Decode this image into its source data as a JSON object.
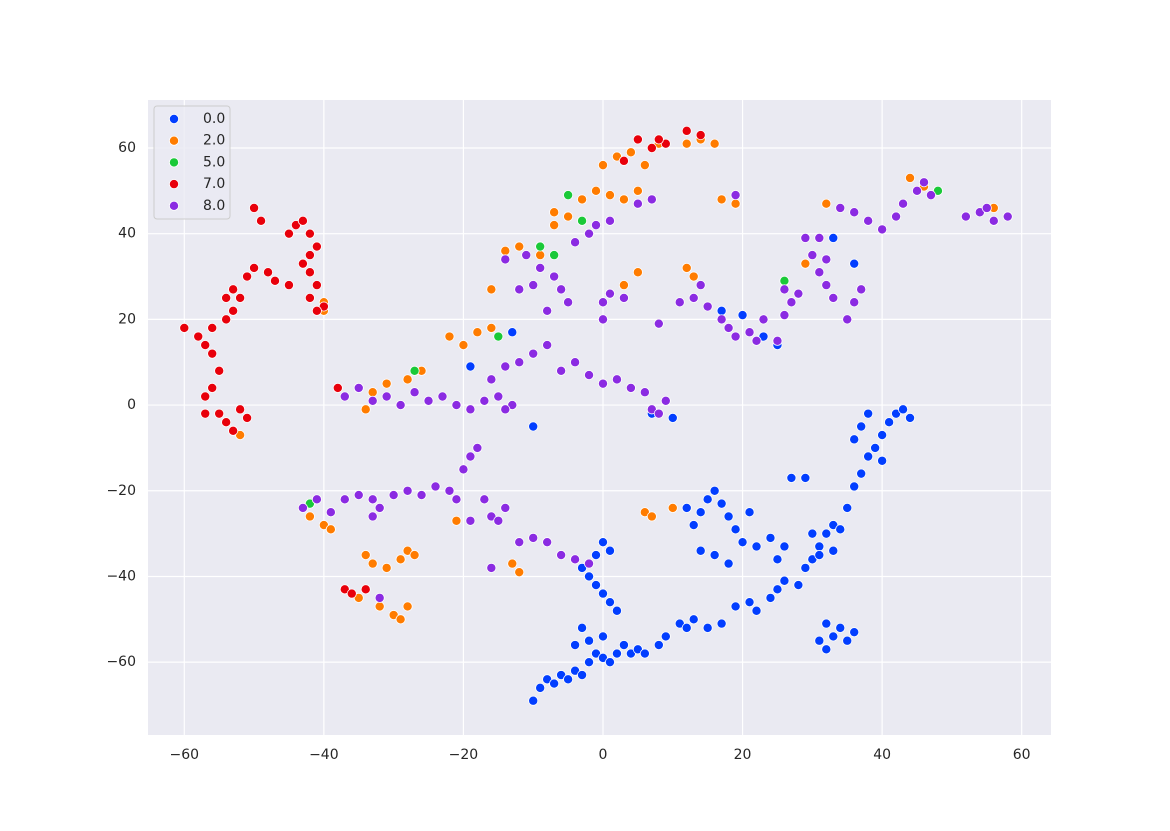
{
  "chart_data": {
    "type": "scatter",
    "legend": "upper left",
    "grid": true,
    "xlim": [
      -65.2,
      64.2
    ],
    "ylim": [
      -77.0,
      71.2
    ],
    "xticks": [
      {
        "value": -60,
        "label": "−60"
      },
      {
        "value": -40,
        "label": "−40"
      },
      {
        "value": -20,
        "label": "−20"
      },
      0,
      20,
      40,
      60
    ],
    "yticks": [
      {
        "value": -60,
        "label": "−60"
      },
      {
        "value": -40,
        "label": "−40"
      },
      {
        "value": -20,
        "label": "−20"
      },
      0,
      20,
      40,
      60
    ],
    "series": [
      {
        "name": "0.0",
        "color": "#023eff",
        "x": [
          -10,
          -9,
          -8,
          -7,
          -6,
          -5,
          -4,
          -3,
          -2,
          -1,
          0,
          1,
          2,
          3,
          4,
          5,
          6,
          8,
          9,
          11,
          12,
          13,
          15,
          17,
          19,
          21,
          22,
          24,
          25,
          26,
          28,
          29,
          30,
          31,
          32,
          33,
          34,
          35,
          36,
          37,
          38,
          39,
          40,
          40,
          41,
          42,
          43,
          44,
          36,
          37,
          38,
          -3,
          -2,
          -4,
          0,
          -3,
          -2,
          -1,
          0,
          1,
          2,
          -1,
          0,
          1,
          12,
          13,
          14,
          15,
          16,
          17,
          18,
          19,
          20,
          21,
          14,
          16,
          18,
          22,
          24,
          26,
          25,
          27,
          29,
          30,
          31,
          33,
          31,
          32,
          33,
          34,
          35,
          36,
          32,
          -10,
          -19,
          -13,
          7,
          10,
          17,
          20,
          23,
          25,
          33,
          36
        ],
        "values": [
          -69,
          -66,
          -64,
          -65,
          -63,
          -64,
          -62,
          -63,
          -60,
          -58,
          -59,
          -60,
          -58,
          -56,
          -58,
          -57,
          -58,
          -56,
          -54,
          -51,
          -52,
          -50,
          -52,
          -51,
          -47,
          -46,
          -48,
          -45,
          -43,
          -41,
          -42,
          -38,
          -36,
          -33,
          -30,
          -28,
          -29,
          -24,
          -19,
          -16,
          -12,
          -10,
          -13,
          -7,
          -4,
          -2,
          -1,
          -3,
          -8,
          -5,
          -2,
          -52,
          -55,
          -56,
          -54,
          -38,
          -40,
          -42,
          -44,
          -46,
          -48,
          -35,
          -32,
          -34,
          -24,
          -28,
          -25,
          -22,
          -20,
          -23,
          -26,
          -29,
          -32,
          -25,
          -34,
          -35,
          -37,
          -33,
          -31,
          -33,
          -36,
          -17,
          -17,
          -30,
          -35,
          -34,
          -55,
          -57,
          -54,
          -52,
          -55,
          -53,
          -51,
          -5,
          9,
          17,
          -2,
          -3,
          22,
          21,
          16,
          14,
          39,
          33
        ]
      },
      {
        "name": "2.0",
        "color": "#ff7c00",
        "x": [
          -42,
          -40,
          -39,
          -34,
          -33,
          -31,
          -29,
          -28,
          -27,
          -35,
          -32,
          -30,
          -29,
          -28,
          -35,
          -33,
          -31,
          -28,
          -26,
          -34,
          -21,
          -13,
          -12,
          -22,
          -20,
          -18,
          -16,
          -16,
          -14,
          -12,
          -9,
          -7,
          -5,
          -3,
          -1,
          1,
          3,
          5,
          0,
          2,
          4,
          6,
          12,
          14,
          16,
          3,
          5,
          13,
          12,
          17,
          19,
          29,
          32,
          44,
          46,
          56,
          6,
          7,
          10,
          -53,
          -52,
          -40,
          -40,
          -7,
          8
        ],
        "values": [
          -26,
          -28,
          -29,
          -35,
          -37,
          -38,
          -36,
          -34,
          -35,
          -45,
          -47,
          -49,
          -50,
          -47,
          4,
          3,
          5,
          6,
          8,
          -1,
          -27,
          -37,
          -39,
          16,
          14,
          17,
          18,
          27,
          36,
          37,
          35,
          42,
          44,
          48,
          50,
          49,
          48,
          50,
          56,
          58,
          59,
          56,
          61,
          62,
          61,
          28,
          31,
          30,
          32,
          48,
          47,
          33,
          47,
          53,
          51,
          46,
          -25,
          -26,
          -24,
          -6,
          -7,
          22,
          24,
          45,
          61
        ]
      },
      {
        "name": "5.0",
        "color": "#1ac938",
        "x": [
          -27,
          -12,
          -7,
          -9,
          -5,
          -3,
          -15,
          26,
          48,
          -42
        ],
        "values": [
          8,
          27,
          35,
          37,
          49,
          43,
          16,
          29,
          50,
          -23
        ]
      },
      {
        "name": "7.0",
        "color": "#e8000b",
        "x": [
          -60,
          -58,
          -57,
          -56,
          -55,
          -56,
          -57,
          -55,
          -54,
          -53,
          -52,
          -51,
          -57,
          -54,
          -53,
          -52,
          -53,
          -51,
          -50,
          -48,
          -47,
          -45,
          -49,
          -50,
          -45,
          -44,
          -43,
          -42,
          -41,
          -42,
          -43,
          -42,
          -41,
          -42,
          -40,
          -41,
          -37,
          -36,
          -34,
          -38,
          5,
          7,
          9,
          3,
          12,
          14,
          8,
          -54,
          -56
        ],
        "values": [
          18,
          16,
          14,
          12,
          8,
          4,
          2,
          -2,
          -4,
          -6,
          -1,
          -3,
          -2,
          20,
          22,
          25,
          27,
          30,
          32,
          31,
          29,
          28,
          43,
          46,
          40,
          42,
          43,
          40,
          37,
          35,
          33,
          31,
          28,
          25,
          23,
          22,
          -43,
          -44,
          -43,
          4,
          62,
          60,
          61,
          57,
          64,
          63,
          62,
          25,
          18
        ]
      },
      {
        "name": "8.0",
        "color": "#8b2be2",
        "x": [
          -43,
          -41,
          -39,
          -37,
          -35,
          -33,
          -32,
          -30,
          -28,
          -26,
          -24,
          -22,
          -21,
          -20,
          -19,
          -18,
          -17,
          -16,
          -15,
          -14,
          -19,
          -12,
          -10,
          -8,
          -6,
          -4,
          -2,
          -16,
          -37,
          -35,
          -33,
          -31,
          -29,
          -27,
          -25,
          -23,
          -21,
          -19,
          -17,
          -16,
          -14,
          -12,
          -10,
          -8,
          -6,
          -4,
          -2,
          0,
          2,
          4,
          6,
          7,
          8,
          9,
          -15,
          -13,
          -14,
          -14,
          -11,
          -9,
          -7,
          -6,
          -5,
          -4,
          -2,
          -1,
          1,
          -12,
          -10,
          -8,
          0,
          1,
          0,
          3,
          5,
          7,
          11,
          13,
          14,
          15,
          17,
          18,
          19,
          21,
          22,
          23,
          25,
          26,
          27,
          28,
          26,
          29,
          31,
          30,
          32,
          31,
          32,
          33,
          35,
          36,
          37,
          34,
          36,
          38,
          40,
          42,
          43,
          45,
          46,
          47,
          52,
          54,
          56,
          58,
          55,
          19,
          -33,
          -32,
          8
        ],
        "values": [
          -24,
          -22,
          -25,
          -22,
          -21,
          -22,
          -24,
          -21,
          -20,
          -21,
          -19,
          -20,
          -22,
          -15,
          -12,
          -10,
          -22,
          -26,
          -27,
          -24,
          -27,
          -32,
          -31,
          -32,
          -35,
          -36,
          -37,
          -38,
          2,
          4,
          1,
          2,
          0,
          3,
          1,
          2,
          0,
          -1,
          1,
          6,
          9,
          10,
          12,
          14,
          8,
          10,
          7,
          5,
          6,
          4,
          3,
          -1,
          -2,
          1,
          2,
          0,
          -1,
          34,
          35,
          32,
          30,
          27,
          24,
          38,
          40,
          42,
          43,
          27,
          28,
          22,
          24,
          26,
          20,
          25,
          47,
          48,
          24,
          25,
          28,
          23,
          20,
          18,
          16,
          17,
          15,
          20,
          15,
          21,
          24,
          26,
          27,
          39,
          39,
          35,
          34,
          31,
          28,
          25,
          20,
          24,
          27,
          46,
          45,
          43,
          41,
          44,
          47,
          50,
          52,
          49,
          44,
          45,
          43,
          44,
          46,
          49,
          -26,
          -45,
          19
        ]
      }
    ]
  }
}
